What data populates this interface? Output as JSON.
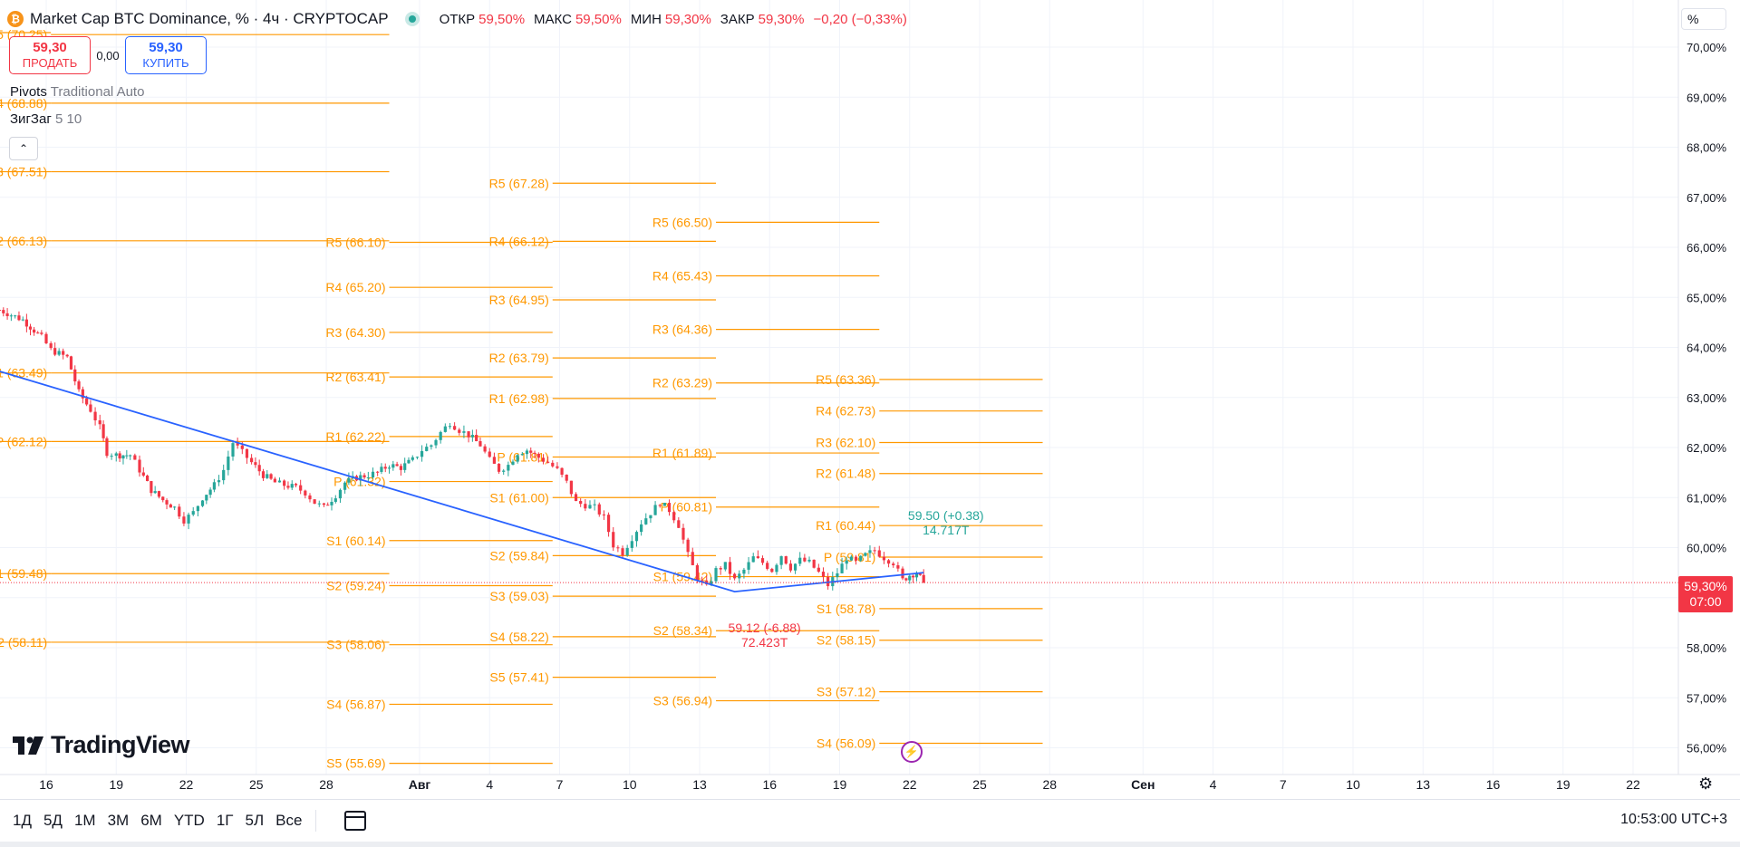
{
  "header": {
    "symbol_icon": "bitcoin-icon",
    "title": "Market Cap BTC Dominance, % · 4ч · CRYPTOCAP",
    "ohlc": [
      {
        "label": "ОТКР",
        "value": "59,50%"
      },
      {
        "label": "МАКС",
        "value": "59,50%"
      },
      {
        "label": "МИН",
        "value": "59,30%"
      },
      {
        "label": "ЗАКР",
        "value": "59,30%"
      }
    ],
    "change": "−0,20 (−0,33%)"
  },
  "trade": {
    "sell_price": "59,30",
    "sell_label": "ПРОДАТЬ",
    "spread": "0,00",
    "buy_price": "59,30",
    "buy_label": "КУПИТЬ"
  },
  "indicators": [
    {
      "name": "Pivots",
      "params": "Traditional Auto"
    },
    {
      "name": "ЗигЗаг",
      "params": "5 10"
    }
  ],
  "scale_unit": "%",
  "last_price": {
    "value": "59,30%",
    "countdown": "07:00"
  },
  "watermark": "TradingView",
  "ranges": [
    "1Д",
    "5Д",
    "1М",
    "3М",
    "6М",
    "YTD",
    "1Г",
    "5Л",
    "Все"
  ],
  "clock": "10:53:00 UTC+3",
  "colors": {
    "up": "#26a69a",
    "down": "#f23645",
    "pivot": "#ff9800",
    "zigzag": "#2962ff",
    "grid": "#f0f3fa"
  },
  "chart_data": {
    "type": "candlestick",
    "price_axis": {
      "min": 55.8,
      "max": 70.3,
      "tick_labels": [
        "56,00%",
        "57,00%",
        "58,00%",
        "59,00%",
        "60,00%",
        "61,00%",
        "62,00%",
        "63,00%",
        "64,00%",
        "65,00%",
        "66,00%",
        "67,00%",
        "68,00%",
        "69,00%",
        "70,00%"
      ]
    },
    "time_axis": {
      "day_start": "Jul 14",
      "day_end": "Sep 25",
      "ticks": [
        {
          "day": 16,
          "label": "16"
        },
        {
          "day": 19,
          "label": "19"
        },
        {
          "day": 22,
          "label": "22"
        },
        {
          "day": 25,
          "label": "25"
        },
        {
          "day": 28,
          "label": "28"
        },
        {
          "day": 32,
          "label": "Авг"
        },
        {
          "day": 35,
          "label": "4"
        },
        {
          "day": 38,
          "label": "7"
        },
        {
          "day": 41,
          "label": "10"
        },
        {
          "day": 44,
          "label": "13"
        },
        {
          "day": 47,
          "label": "16"
        },
        {
          "day": 50,
          "label": "19"
        },
        {
          "day": 53,
          "label": "22"
        },
        {
          "day": 56,
          "label": "25"
        },
        {
          "day": 59,
          "label": "28"
        },
        {
          "day": 63,
          "label": "Сен"
        },
        {
          "day": 66,
          "label": "4"
        },
        {
          "day": 69,
          "label": "7"
        },
        {
          "day": 72,
          "label": "10"
        },
        {
          "day": 75,
          "label": "13"
        },
        {
          "day": 78,
          "label": "16"
        },
        {
          "day": 81,
          "label": "19"
        },
        {
          "day": 84,
          "label": "22"
        }
      ]
    },
    "close_path": [
      [
        14.0,
        64.75
      ],
      [
        15.0,
        64.55
      ],
      [
        15.8,
        64.2
      ],
      [
        16.2,
        63.95
      ],
      [
        16.9,
        63.8
      ],
      [
        17.4,
        63.1
      ],
      [
        17.9,
        62.75
      ],
      [
        18.3,
        62.4
      ],
      [
        18.6,
        61.9
      ],
      [
        19.0,
        61.85
      ],
      [
        19.6,
        61.85
      ],
      [
        20.0,
        61.55
      ],
      [
        20.5,
        61.15
      ],
      [
        21.0,
        60.95
      ],
      [
        21.5,
        60.8
      ],
      [
        21.9,
        60.55
      ],
      [
        22.3,
        60.7
      ],
      [
        22.7,
        61.0
      ],
      [
        23.2,
        61.25
      ],
      [
        23.6,
        61.55
      ],
      [
        24.0,
        62.1
      ],
      [
        24.4,
        61.9
      ],
      [
        24.8,
        61.7
      ],
      [
        25.3,
        61.45
      ],
      [
        25.8,
        61.3
      ],
      [
        26.2,
        61.25
      ],
      [
        26.7,
        61.2
      ],
      [
        27.1,
        61.1
      ],
      [
        27.5,
        60.9
      ],
      [
        27.9,
        60.8
      ],
      [
        28.4,
        61.05
      ],
      [
        28.8,
        61.3
      ],
      [
        29.3,
        61.4
      ],
      [
        29.8,
        61.45
      ],
      [
        30.2,
        61.5
      ],
      [
        30.7,
        61.65
      ],
      [
        31.2,
        61.6
      ],
      [
        31.7,
        61.75
      ],
      [
        32.1,
        61.95
      ],
      [
        32.5,
        62.05
      ],
      [
        32.9,
        62.3
      ],
      [
        33.3,
        62.5
      ],
      [
        33.7,
        62.35
      ],
      [
        34.1,
        62.25
      ],
      [
        34.6,
        62.05
      ],
      [
        35.0,
        61.75
      ],
      [
        35.4,
        61.55
      ],
      [
        35.8,
        61.65
      ],
      [
        36.2,
        61.9
      ],
      [
        36.6,
        61.95
      ],
      [
        37.1,
        61.8
      ],
      [
        37.5,
        61.7
      ],
      [
        37.9,
        61.55
      ],
      [
        38.3,
        61.3
      ],
      [
        38.7,
        60.9
      ],
      [
        39.1,
        60.85
      ],
      [
        39.5,
        60.8
      ],
      [
        39.9,
        60.6
      ],
      [
        40.3,
        60.05
      ],
      [
        40.7,
        59.9
      ],
      [
        41.1,
        60.2
      ],
      [
        41.5,
        60.5
      ],
      [
        41.9,
        60.7
      ],
      [
        42.3,
        60.9
      ],
      [
        42.7,
        60.75
      ],
      [
        43.1,
        60.45
      ],
      [
        43.5,
        59.85
      ],
      [
        43.9,
        59.4
      ],
      [
        44.3,
        59.2
      ],
      [
        44.7,
        59.55
      ],
      [
        45.1,
        59.65
      ],
      [
        45.5,
        59.35
      ],
      [
        45.9,
        59.55
      ],
      [
        46.3,
        59.8
      ],
      [
        46.7,
        59.7
      ],
      [
        47.1,
        59.55
      ],
      [
        47.5,
        59.85
      ],
      [
        47.9,
        59.6
      ],
      [
        48.3,
        59.75
      ],
      [
        48.7,
        59.7
      ],
      [
        49.1,
        59.5
      ],
      [
        49.5,
        59.25
      ],
      [
        49.9,
        59.5
      ],
      [
        50.3,
        59.8
      ],
      [
        50.7,
        59.7
      ],
      [
        51.1,
        59.85
      ],
      [
        51.5,
        59.95
      ],
      [
        51.9,
        59.8
      ],
      [
        52.3,
        59.7
      ],
      [
        52.7,
        59.35
      ],
      [
        53.0,
        59.45
      ],
      [
        53.3,
        59.5
      ],
      [
        53.6,
        59.3
      ]
    ],
    "zigzag": {
      "points": [
        [
          13.8,
          63.55
        ],
        [
          45.5,
          59.12
        ],
        [
          53.6,
          59.5
        ]
      ],
      "labels": [
        {
          "text": "59.12 (-6.88)",
          "volume": "72.423T",
          "x": 45.5,
          "y": 59.12,
          "dir": "down"
        },
        {
          "text": "59.50 (+0.38)",
          "volume": "14.717T",
          "x": 53.0,
          "y": 59.5,
          "dir": "up"
        }
      ]
    },
    "pivots": [
      {
        "start": 14.0,
        "end": 16.2,
        "levels": [
          {
            "name": "R5",
            "value": 70.29
          },
          {
            "name": "R4",
            "value": 68.88
          },
          {
            "name": "R3",
            "value": 67.51
          },
          {
            "name": "R2",
            "value": 66.13
          },
          {
            "name": "R1",
            "value": 63.49
          },
          {
            "name": "P",
            "value": 62.12
          },
          {
            "name": "S1",
            "value": 59.48
          },
          {
            "name": "S2",
            "value": 58.11
          }
        ]
      },
      {
        "start": 16.2,
        "end": 30.7,
        "levels": [
          {
            "name": "R5",
            "value": 70.25
          },
          {
            "name": "R4",
            "value": 68.88
          },
          {
            "name": "R3",
            "value": 67.51
          },
          {
            "name": "R2",
            "value": 66.13
          },
          {
            "name": "R1",
            "value": 63.49
          },
          {
            "name": "P",
            "value": 62.12
          },
          {
            "name": "S1",
            "value": 59.48
          },
          {
            "name": "S2",
            "value": 58.11
          }
        ]
      },
      {
        "start": 30.7,
        "end": 37.7,
        "levels": [
          {
            "name": "R5",
            "value": 66.1
          },
          {
            "name": "R4",
            "value": 65.2
          },
          {
            "name": "R3",
            "value": 64.3
          },
          {
            "name": "R2",
            "value": 63.41
          },
          {
            "name": "R1",
            "value": 62.22
          },
          {
            "name": "P",
            "value": 61.32
          },
          {
            "name": "S1",
            "value": 60.14
          },
          {
            "name": "S2",
            "value": 59.24
          },
          {
            "name": "S3",
            "value": 58.06
          },
          {
            "name": "S4",
            "value": 56.87
          },
          {
            "name": "S5",
            "value": 55.69
          }
        ]
      },
      {
        "start": 37.7,
        "end": 44.7,
        "levels": [
          {
            "name": "R5",
            "value": 67.28
          },
          {
            "name": "R4",
            "value": 66.12
          },
          {
            "name": "R3",
            "value": 64.95
          },
          {
            "name": "R2",
            "value": 63.79
          },
          {
            "name": "R1",
            "value": 62.98
          },
          {
            "name": "P",
            "value": 61.81
          },
          {
            "name": "S1",
            "value": 61.0
          },
          {
            "name": "S2",
            "value": 59.84
          },
          {
            "name": "S3",
            "value": 59.03
          },
          {
            "name": "S4",
            "value": 58.22
          },
          {
            "name": "S5",
            "value": 57.41
          }
        ]
      },
      {
        "start": 44.7,
        "end": 51.7,
        "levels": [
          {
            "name": "R5",
            "value": 66.5
          },
          {
            "name": "R4",
            "value": 65.43
          },
          {
            "name": "R3",
            "value": 64.36
          },
          {
            "name": "R2",
            "value": 63.29
          },
          {
            "name": "R1",
            "value": 61.89
          },
          {
            "name": "P",
            "value": 60.81
          },
          {
            "name": "S1",
            "value": 59.42
          },
          {
            "name": "S2",
            "value": 58.34
          },
          {
            "name": "S3",
            "value": 56.94
          }
        ]
      },
      {
        "start": 51.7,
        "end": 58.7,
        "levels": [
          {
            "name": "R5",
            "value": 63.36
          },
          {
            "name": "R4",
            "value": 62.73
          },
          {
            "name": "R3",
            "value": 62.1
          },
          {
            "name": "R2",
            "value": 61.48
          },
          {
            "name": "R1",
            "value": 60.44
          },
          {
            "name": "P",
            "value": 59.81
          },
          {
            "name": "S1",
            "value": 58.78
          },
          {
            "name": "S2",
            "value": 58.15
          },
          {
            "name": "S3",
            "value": 57.12
          },
          {
            "name": "S4",
            "value": 56.09
          }
        ]
      }
    ]
  }
}
